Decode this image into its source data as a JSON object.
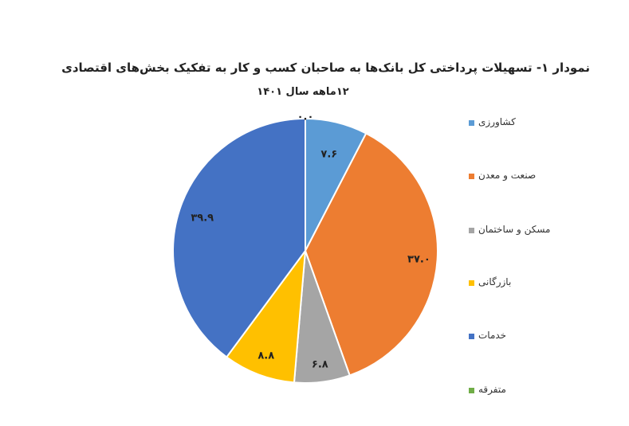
{
  "chart_data": {
    "type": "pie",
    "title": "نمودار ۱- تسهیلات پرداختی کل بانک‌ها به صاحبان کسب و کار به تفکیک بخش‌های اقتصادی",
    "subtitle": "۱۲ماهه سال ۱۴۰۱",
    "start_angle_deg": 0,
    "direction": "clockwise",
    "legend_position": "right",
    "slices": [
      {
        "label": "کشاورزی",
        "value": 7.6,
        "display": "۷.۶",
        "color": "#5b9bd5"
      },
      {
        "label": "صنعت و معدن",
        "value": 37.0,
        "display": "۳۷.۰",
        "color": "#ed7d31"
      },
      {
        "label": "مسکن و ساختمان",
        "value": 6.8,
        "display": "۶.۸",
        "color": "#a5a5a5"
      },
      {
        "label": "بازرگانی",
        "value": 8.8,
        "display": "۸.۸",
        "color": "#ffc000"
      },
      {
        "label": "خدمات",
        "value": 39.9,
        "display": "۳۹.۹",
        "color": "#4472c4"
      },
      {
        "label": "متفرقه",
        "value": 0.0,
        "display": "۰.۰",
        "color": "#70ad47"
      }
    ]
  }
}
